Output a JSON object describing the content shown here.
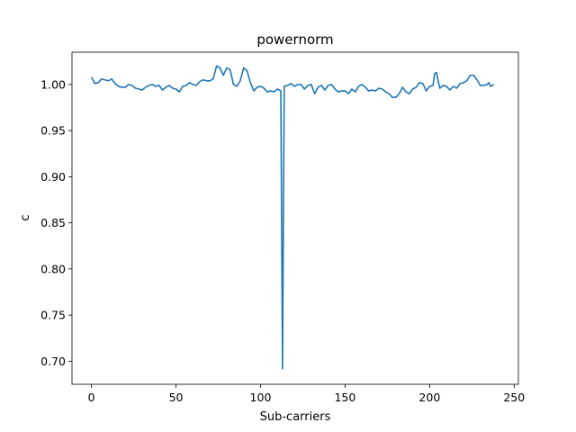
{
  "chart_data": {
    "type": "line",
    "title": "powernorm",
    "xlabel": "Sub-carriers",
    "ylabel": "c",
    "xlim": [
      -11.5,
      252.5
    ],
    "ylim": [
      0.675,
      1.035
    ],
    "xticks": [
      0,
      50,
      100,
      150,
      200,
      250
    ],
    "yticks": [
      0.7,
      0.75,
      0.8,
      0.85,
      0.9,
      0.95,
      1.0
    ],
    "xtick_labels": [
      "0",
      "50",
      "100",
      "150",
      "200",
      "250"
    ],
    "ytick_labels": [
      "0.70",
      "0.75",
      "0.80",
      "0.85",
      "0.90",
      "0.95",
      "1.00"
    ],
    "grid": false,
    "series": [
      {
        "color": "#1f77b4",
        "points": [
          [
            0,
            1.008
          ],
          [
            2,
            1.001
          ],
          [
            4,
            1.002
          ],
          [
            6,
            1.006
          ],
          [
            8,
            1.005
          ],
          [
            10,
            1.004
          ],
          [
            12,
            1.006
          ],
          [
            14,
            1.001
          ],
          [
            16,
            0.998
          ],
          [
            18,
            0.997
          ],
          [
            20,
            0.997
          ],
          [
            22,
            1.0
          ],
          [
            24,
            0.999
          ],
          [
            26,
            0.996
          ],
          [
            28,
            0.995
          ],
          [
            30,
            0.994
          ],
          [
            32,
            0.997
          ],
          [
            34,
            0.999
          ],
          [
            36,
            1.0
          ],
          [
            38,
            0.998
          ],
          [
            40,
            0.999
          ],
          [
            42,
            0.994
          ],
          [
            44,
            0.997
          ],
          [
            46,
            0.999
          ],
          [
            48,
            0.996
          ],
          [
            50,
            0.995
          ],
          [
            52,
            0.992
          ],
          [
            54,
            0.998
          ],
          [
            56,
            0.999
          ],
          [
            58,
            1.002
          ],
          [
            60,
            1.0
          ],
          [
            62,
            0.999
          ],
          [
            64,
            1.003
          ],
          [
            66,
            1.005
          ],
          [
            68,
            1.004
          ],
          [
            70,
            1.004
          ],
          [
            72,
            1.006
          ],
          [
            74,
            1.02
          ],
          [
            76,
            1.018
          ],
          [
            78,
            1.01
          ],
          [
            80,
            1.018
          ],
          [
            82,
            1.016
          ],
          [
            84,
            1.0
          ],
          [
            86,
            0.998
          ],
          [
            88,
            1.004
          ],
          [
            90,
            1.018
          ],
          [
            92,
            1.015
          ],
          [
            94,
            1.002
          ],
          [
            96,
            0.993
          ],
          [
            98,
            0.997
          ],
          [
            100,
            0.998
          ],
          [
            102,
            0.996
          ],
          [
            104,
            0.992
          ],
          [
            106,
            0.993
          ],
          [
            108,
            0.992
          ],
          [
            110,
            0.995
          ],
          [
            111,
            0.994
          ],
          [
            112,
            0.993
          ],
          [
            113,
            0.692
          ],
          [
            114,
            0.998
          ],
          [
            116,
            0.999
          ],
          [
            118,
            1.001
          ],
          [
            120,
            0.998
          ],
          [
            122,
            1.0
          ],
          [
            124,
            1.0
          ],
          [
            126,
            0.995
          ],
          [
            128,
            0.999
          ],
          [
            130,
            1.0
          ],
          [
            132,
            0.99
          ],
          [
            134,
            0.997
          ],
          [
            136,
            0.999
          ],
          [
            138,
            0.994
          ],
          [
            140,
            0.999
          ],
          [
            142,
            1.0
          ],
          [
            144,
            0.995
          ],
          [
            146,
            0.992
          ],
          [
            148,
            0.993
          ],
          [
            150,
            0.993
          ],
          [
            152,
            0.99
          ],
          [
            154,
            0.995
          ],
          [
            156,
            0.992
          ],
          [
            158,
            0.998
          ],
          [
            160,
            1.0
          ],
          [
            162,
            0.997
          ],
          [
            164,
            0.993
          ],
          [
            166,
            0.994
          ],
          [
            168,
            0.993
          ],
          [
            170,
            0.996
          ],
          [
            172,
            0.995
          ],
          [
            174,
            0.992
          ],
          [
            176,
            0.99
          ],
          [
            178,
            0.986
          ],
          [
            180,
            0.986
          ],
          [
            182,
            0.99
          ],
          [
            184,
            0.997
          ],
          [
            186,
            0.992
          ],
          [
            188,
            0.99
          ],
          [
            190,
            0.995
          ],
          [
            192,
            0.997
          ],
          [
            194,
            1.002
          ],
          [
            196,
            1.001
          ],
          [
            198,
            0.993
          ],
          [
            200,
            0.998
          ],
          [
            202,
            0.999
          ],
          [
            203,
            1.012
          ],
          [
            204,
            1.013
          ],
          [
            206,
            0.996
          ],
          [
            208,
            0.999
          ],
          [
            210,
            0.998
          ],
          [
            212,
            0.994
          ],
          [
            214,
            0.998
          ],
          [
            216,
            0.996
          ],
          [
            218,
            1.001
          ],
          [
            220,
            1.002
          ],
          [
            222,
            1.004
          ],
          [
            224,
            1.01
          ],
          [
            226,
            1.01
          ],
          [
            228,
            1.005
          ],
          [
            230,
            0.999
          ],
          [
            232,
            0.999
          ],
          [
            234,
            1.0
          ],
          [
            235,
            1.002
          ],
          [
            236,
            0.998
          ],
          [
            238,
            1.0
          ]
        ]
      }
    ]
  }
}
